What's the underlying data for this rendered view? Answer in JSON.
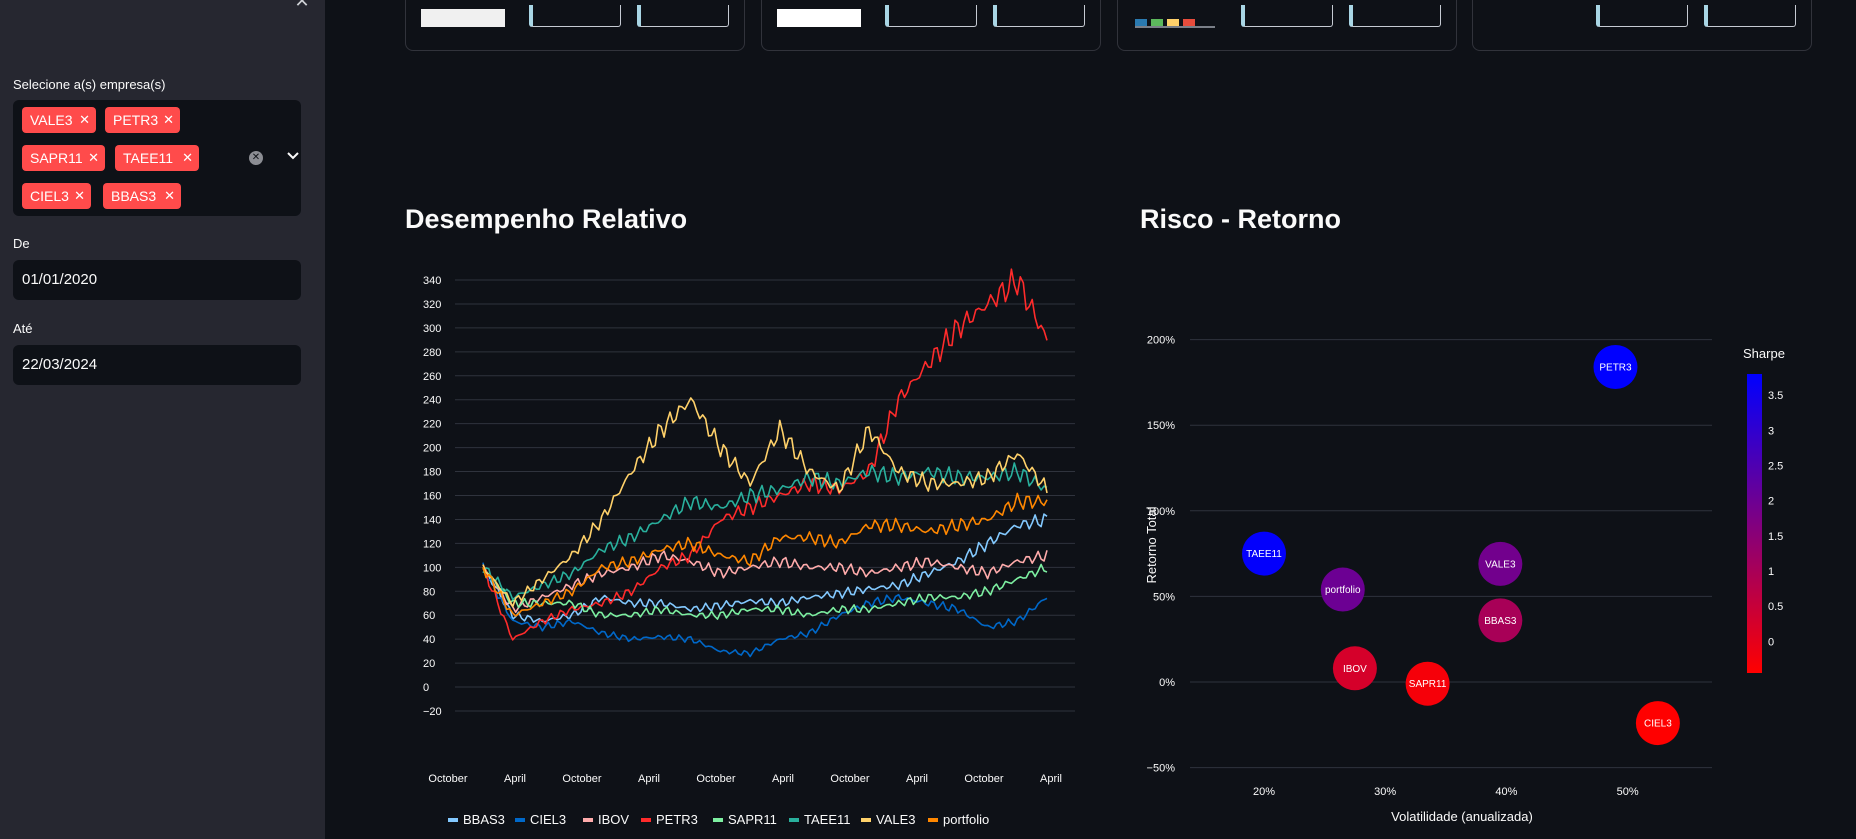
{
  "sidebar": {
    "companies_label": "Selecione a(s) empresa(s)",
    "selected": [
      "VALE3",
      "PETR3",
      "SAPR11",
      "TAEE11",
      "CIEL3",
      "BBAS3"
    ],
    "from_label": "De",
    "from_value": "01/01/2020",
    "to_label": "Até",
    "to_value": "22/03/2024",
    "tag_color": "#ff4b4b"
  },
  "sections": {
    "relative_title": "Desempenho Relativo",
    "risk_title": "Risco - Retorno"
  },
  "chart_data": [
    {
      "type": "line",
      "title": "Desempenho Relativo",
      "xlabel": "",
      "ylabel": "",
      "ylim": [
        -25,
        350
      ],
      "yticks": [
        340,
        320,
        300,
        280,
        260,
        240,
        220,
        200,
        180,
        160,
        140,
        120,
        100,
        80,
        60,
        40,
        20,
        0,
        -20
      ],
      "xticks": [
        "October",
        "April",
        "October",
        "April",
        "October",
        "April",
        "October",
        "April",
        "October",
        "April"
      ],
      "grid": true,
      "legend_position": "bottom",
      "series": [
        {
          "name": "BBAS3",
          "color": "#83c9ff",
          "values": [
            100,
            60,
            55,
            60,
            75,
            70,
            70,
            65,
            68,
            72,
            70,
            75,
            78,
            82,
            85,
            95,
            105,
            120,
            135,
            140
          ]
        },
        {
          "name": "CIEL3",
          "color": "#0068c9",
          "values": [
            100,
            55,
            50,
            55,
            45,
            40,
            42,
            40,
            30,
            28,
            40,
            45,
            60,
            70,
            75,
            70,
            65,
            50,
            55,
            75
          ]
        },
        {
          "name": "IBOV",
          "color": "#ffabab",
          "values": [
            100,
            65,
            75,
            85,
            95,
            100,
            110,
            105,
            95,
            100,
            105,
            100,
            100,
            95,
            100,
            105,
            100,
            95,
            105,
            110
          ]
        },
        {
          "name": "PETR3",
          "color": "#ff2b2b",
          "values": [
            100,
            40,
            55,
            65,
            70,
            80,
            100,
            110,
            140,
            150,
            160,
            170,
            165,
            180,
            240,
            270,
            300,
            320,
            340,
            290
          ]
        },
        {
          "name": "SAPR11",
          "color": "#7defa1",
          "values": [
            100,
            70,
            70,
            70,
            60,
            60,
            65,
            60,
            60,
            65,
            65,
            60,
            65,
            65,
            70,
            75,
            75,
            80,
            90,
            100
          ]
        },
        {
          "name": "TAEE11",
          "color": "#29b09d",
          "values": [
            100,
            75,
            85,
            95,
            115,
            125,
            140,
            155,
            150,
            160,
            165,
            175,
            170,
            180,
            175,
            180,
            175,
            175,
            180,
            165
          ]
        },
        {
          "name": "VALE3",
          "color": "#ffd16a",
          "values": [
            100,
            70,
            90,
            110,
            140,
            180,
            215,
            240,
            200,
            170,
            215,
            180,
            165,
            215,
            180,
            170,
            170,
            175,
            195,
            165
          ]
        },
        {
          "name": "portfolio",
          "color": "#ff8700",
          "values": [
            100,
            60,
            70,
            80,
            100,
            105,
            115,
            120,
            110,
            105,
            125,
            125,
            120,
            135,
            135,
            130,
            135,
            140,
            155,
            155
          ]
        }
      ]
    },
    {
      "type": "scatter",
      "title": "Risco - Retorno",
      "xlabel": "Volatilidade (anualizada)",
      "ylabel": "Retorno Total",
      "xticks": [
        "20%",
        "30%",
        "40%",
        "50%"
      ],
      "yticks": [
        "200%",
        "150%",
        "100%",
        "50%",
        "0%",
        "−50%"
      ],
      "xlim": [
        0.15,
        0.57
      ],
      "ylim": [
        -0.6,
        2.05
      ],
      "colorbar_title": "Sharpe",
      "colorbar_ticks": [
        "3.5",
        "3",
        "2.5",
        "2",
        "1.5",
        "1",
        "0.5",
        "0"
      ],
      "colorbar_range": [
        -0.45,
        3.8
      ],
      "points": [
        {
          "label": "PETR3",
          "x": 0.49,
          "y": 1.84,
          "sharpe": 3.8
        },
        {
          "label": "TAEE11",
          "x": 0.2,
          "y": 0.75,
          "sharpe": 3.75
        },
        {
          "label": "portfolio",
          "x": 0.265,
          "y": 0.54,
          "sharpe": 2.0
        },
        {
          "label": "VALE3",
          "x": 0.395,
          "y": 0.69,
          "sharpe": 1.9
        },
        {
          "label": "BBAS3",
          "x": 0.395,
          "y": 0.36,
          "sharpe": 1.0
        },
        {
          "label": "IBOV",
          "x": 0.275,
          "y": 0.08,
          "sharpe": 0.25
        },
        {
          "label": "SAPR11",
          "x": 0.335,
          "y": -0.01,
          "sharpe": -0.3
        },
        {
          "label": "CIEL3",
          "x": 0.525,
          "y": -0.24,
          "sharpe": -0.45
        }
      ]
    }
  ]
}
